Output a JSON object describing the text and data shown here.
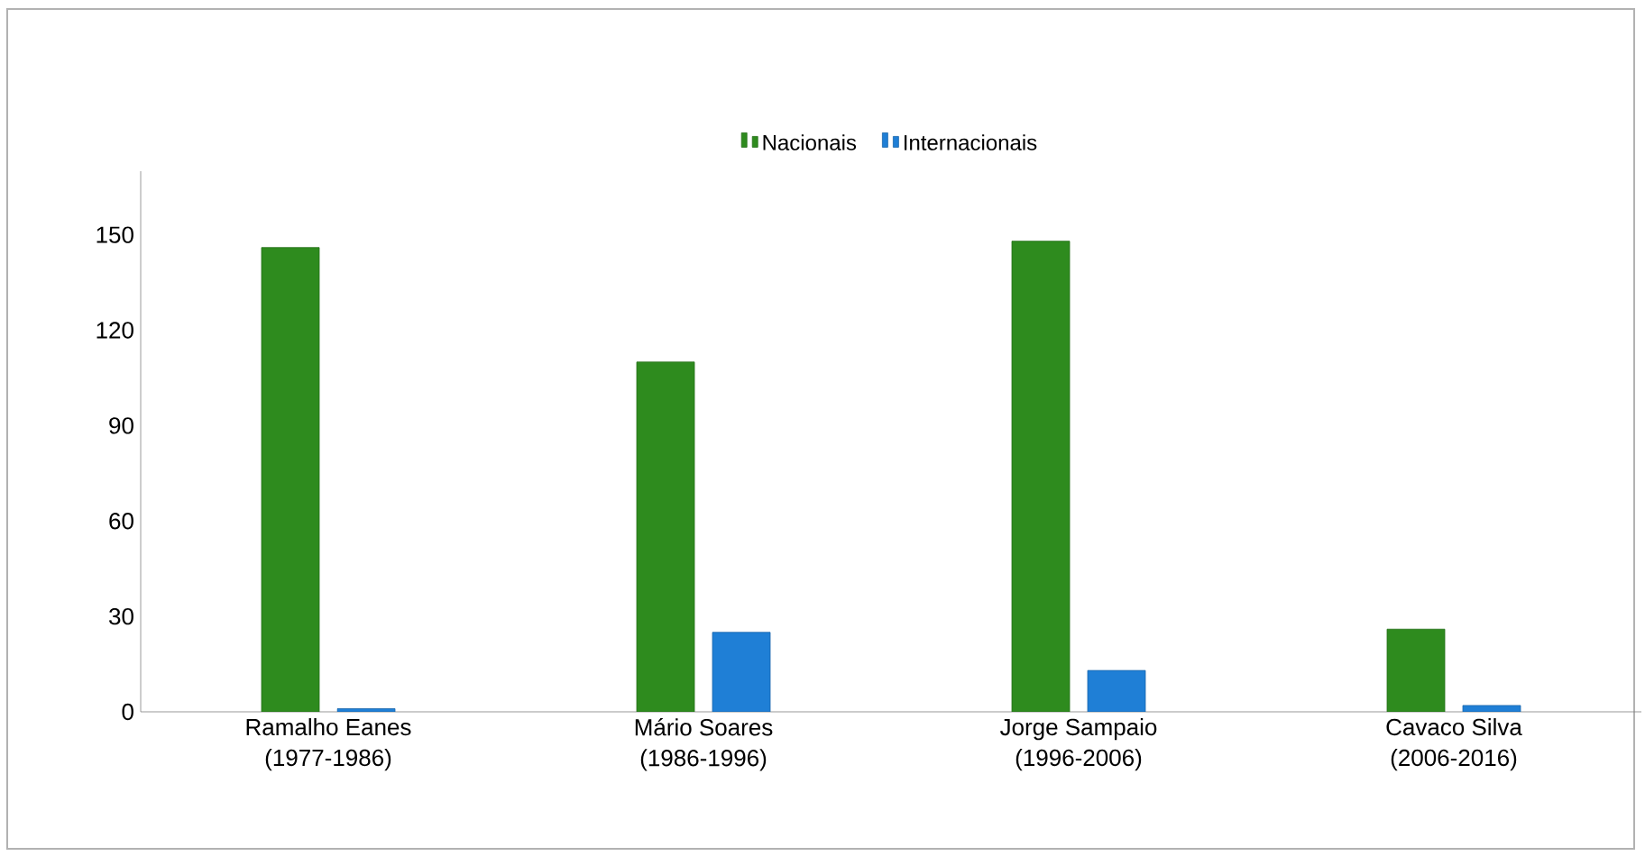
{
  "chart_data": {
    "type": "bar",
    "categories": [
      "Ramalho Eanes\n(1977-1986)",
      "Mário Soares\n(1986-1996)",
      "Jorge Sampaio\n(1996-2006)",
      "Cavaco Silva\n(2006-2016)"
    ],
    "series": [
      {
        "name": "Nacionais",
        "color": "#2e8b1e",
        "values": [
          146,
          110,
          148,
          26
        ]
      },
      {
        "name": "Internacionais",
        "color": "#1f7fd6",
        "values": [
          1,
          25,
          13,
          2
        ]
      }
    ],
    "ylim": [
      0,
      170
    ],
    "yticks": [
      0,
      30,
      60,
      90,
      120,
      150
    ],
    "grid": false,
    "legend": "top"
  }
}
